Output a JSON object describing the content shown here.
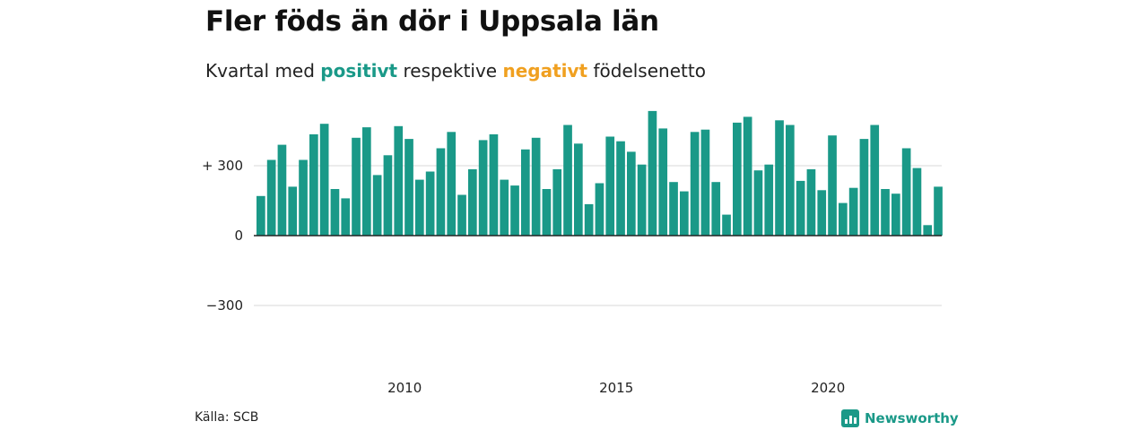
{
  "header": {
    "title": "Fler föds än dör i Uppsala län",
    "subtitle_prefix": "Kvartal med ",
    "subtitle_positive": "positivt",
    "subtitle_middle": " respektive ",
    "subtitle_negative": "negativt",
    "subtitle_suffix": " födelsenetto"
  },
  "footer": {
    "source": "Källa: SCB",
    "brand": "Newsworthy"
  },
  "colors": {
    "positive": "#1a9988",
    "negative": "#f0a020",
    "grid": "#d9d9d9",
    "axis": "#222222"
  },
  "chart_data": {
    "type": "bar",
    "title": "Fler föds än dör i Uppsala län",
    "subtitle": "Kvartal med positivt respektive negativt födelsenetto",
    "xlabel": "",
    "ylabel": "",
    "ylim": [
      -400,
      500
    ],
    "yticks": [
      {
        "value": 300,
        "label": "+ 300"
      },
      {
        "value": 0,
        "label": "0"
      },
      {
        "value": -300,
        "label": "−300"
      }
    ],
    "xticks": [
      "2010",
      "2015",
      "2020"
    ],
    "start": "2007 Q1",
    "frequency": "quarter",
    "grid": true,
    "values": [
      170,
      325,
      390,
      210,
      325,
      435,
      480,
      200,
      160,
      420,
      465,
      260,
      345,
      470,
      415,
      240,
      275,
      375,
      445,
      175,
      285,
      410,
      435,
      240,
      215,
      370,
      420,
      200,
      285,
      475,
      395,
      135,
      225,
      425,
      405,
      360,
      305,
      535,
      460,
      230,
      190,
      445,
      455,
      230,
      90,
      485,
      510,
      280,
      305,
      495,
      475,
      235,
      285,
      195,
      430,
      140,
      205,
      415,
      475,
      200,
      180,
      375,
      290,
      45,
      210
    ]
  }
}
